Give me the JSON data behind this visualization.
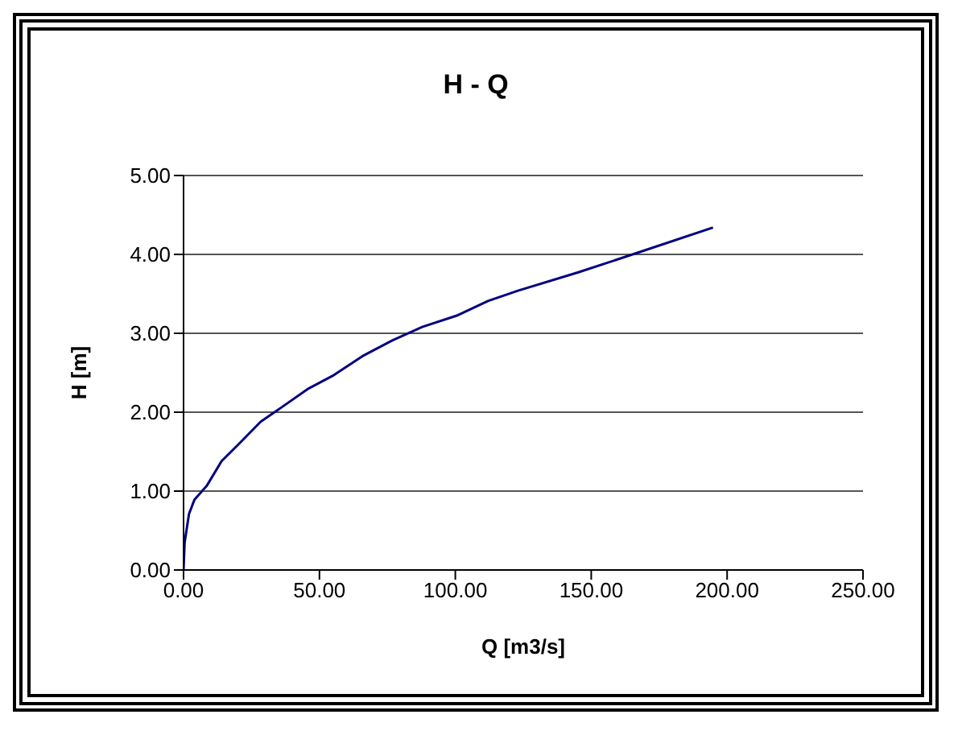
{
  "chart_data": {
    "type": "line",
    "title": "H - Q",
    "xlabel": "Q [m3/s]",
    "ylabel": "H [m]",
    "series": [
      {
        "color": "#000080",
        "x": [
          0,
          0.4,
          2,
          4,
          8.6,
          14,
          20.7,
          28.4,
          36,
          46,
          54.8,
          65.8,
          76.8,
          87.8,
          101,
          112,
          123,
          145,
          167,
          194.8
        ],
        "values": [
          0,
          0.35,
          0.71,
          0.89,
          1.07,
          1.38,
          1.61,
          1.88,
          2.06,
          2.3,
          2.46,
          2.71,
          2.91,
          3.08,
          3.23,
          3.41,
          3.54,
          3.77,
          4.02,
          4.34
        ]
      }
    ],
    "xlim": [
      0,
      250
    ],
    "xticks": [
      {
        "value": 0,
        "label": "0.00"
      },
      {
        "value": 50,
        "label": "50.00"
      },
      {
        "value": 100,
        "label": "100.00"
      },
      {
        "value": 150,
        "label": "150.00"
      },
      {
        "value": 200,
        "label": "200.00"
      },
      {
        "value": 250,
        "label": "250.00"
      }
    ],
    "ylim": [
      0,
      5
    ],
    "yticks": [
      {
        "value": 0,
        "label": "0.00"
      },
      {
        "value": 1,
        "label": "1.00"
      },
      {
        "value": 2,
        "label": "2.00"
      },
      {
        "value": 3,
        "label": "3.00"
      },
      {
        "value": 4,
        "label": "4.00"
      },
      {
        "value": 5,
        "label": "5.00"
      }
    ],
    "grid": "y",
    "legend": false,
    "marker": "none",
    "line_style": "solid"
  }
}
